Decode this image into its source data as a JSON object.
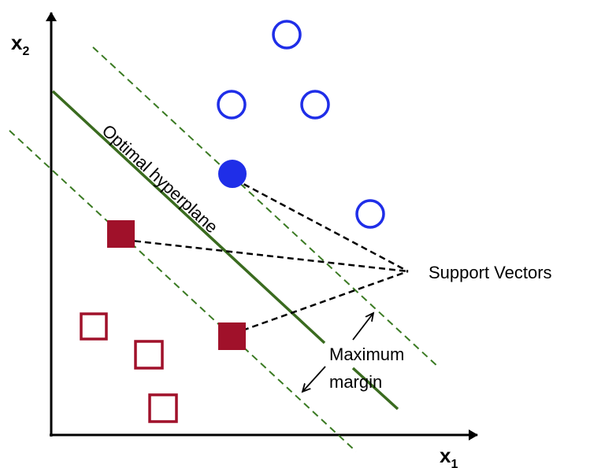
{
  "axes": {
    "x_label": "x",
    "x_subscript": "1",
    "y_label": "x",
    "y_subscript": "2"
  },
  "labels": {
    "hyperplane": "Optimal hyperplane",
    "support_vectors": "Support Vectors",
    "margin_line1": "Maximum",
    "margin_line2": "margin"
  },
  "colors": {
    "class_a": "#1f2ee8",
    "class_b": "#a0112a",
    "hyperplane": "#3a6b1f",
    "margin": "#3a7a22",
    "axis": "#000000"
  },
  "points": {
    "class_a_hollow": 4,
    "class_a_support": 1,
    "class_b_hollow": 3,
    "class_b_support": 2
  }
}
